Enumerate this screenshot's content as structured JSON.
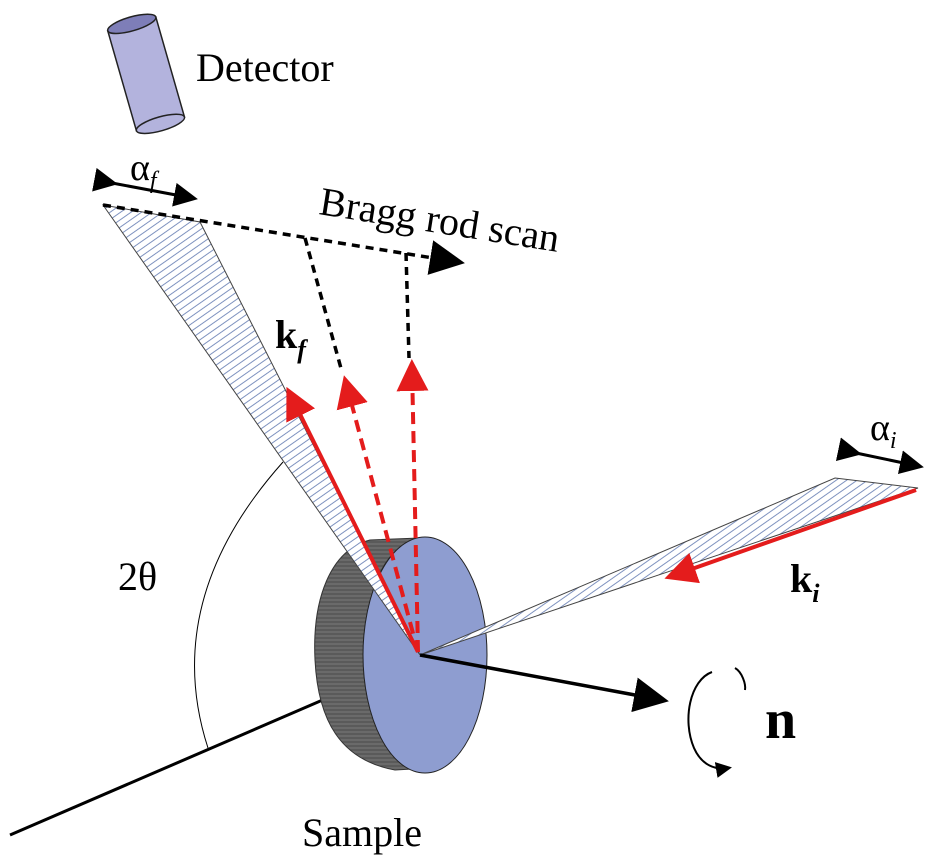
{
  "labels": {
    "detector": "Detector",
    "alpha_f": "α",
    "alpha_f_sub": "f",
    "bragg_rod_scan": "Bragg rod scan",
    "k_f": "k",
    "k_f_sub": "f",
    "alpha_i": "α",
    "alpha_i_sub": "i",
    "k_i": "k",
    "k_i_sub": "i",
    "two_theta": "2θ",
    "normal": "n",
    "sample": "Sample"
  },
  "colors": {
    "beam_red": "#e41c1c",
    "sample_face": "#8e9dd0",
    "sample_edge": "#5a5a5a",
    "detector_body": "#b3b3dd",
    "hatch": "#6f86b8",
    "line": "#000000"
  }
}
